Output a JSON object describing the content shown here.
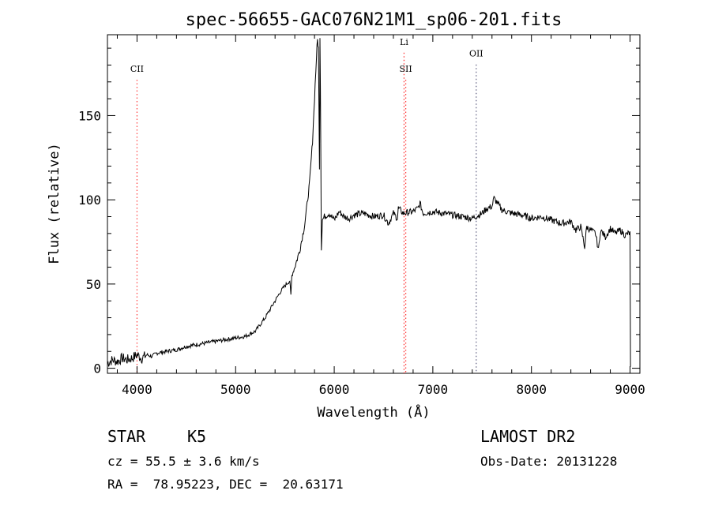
{
  "chart_data": {
    "type": "line",
    "title": "spec-56655-GAC076N21M1_sp06-201.fits",
    "xlabel": "Wavelength (Å)",
    "ylabel": "Flux (relative)",
    "xlim": [
      3700,
      9100
    ],
    "ylim": [
      -3,
      198
    ],
    "x_ticks": [
      4000,
      5000,
      6000,
      7000,
      8000,
      9000
    ],
    "y_ticks": [
      0,
      50,
      100,
      150
    ],
    "grid": false,
    "series": [
      {
        "values_x": [
          3700,
          3750,
          3800,
          3850,
          3900,
          3950,
          4000,
          4050,
          4100,
          4150,
          4200,
          4300,
          4400,
          4500,
          4600,
          4700,
          4800,
          4900,
          5000,
          5100,
          5200,
          5250,
          5300,
          5350,
          5400,
          5450,
          5500,
          5550,
          5560,
          5570,
          5600,
          5650,
          5700,
          5750,
          5780,
          5800,
          5820,
          5830,
          5840,
          5850,
          5855,
          5860,
          5865,
          5870,
          5880,
          5900,
          5950,
          6000,
          6050,
          6100,
          6150,
          6200,
          6300,
          6400,
          6500,
          6550,
          6600,
          6640,
          6650,
          6700,
          6800,
          6850,
          6870,
          6900,
          7000,
          7100,
          7200,
          7300,
          7400,
          7500,
          7550,
          7600,
          7620,
          7700,
          7800,
          7900,
          8000,
          8100,
          8200,
          8300,
          8400,
          8450,
          8500,
          8540,
          8560,
          8600,
          8650,
          8680,
          8700,
          8750,
          8800,
          8850,
          8900,
          8950,
          8980,
          9000,
          9005
        ],
        "values_y": [
          3,
          5,
          4,
          6,
          5,
          6,
          8,
          6,
          8,
          7,
          9,
          10,
          11,
          13,
          14,
          15,
          16,
          17,
          18,
          19,
          22,
          26,
          30,
          35,
          40,
          45,
          49,
          52,
          43,
          55,
          60,
          70,
          85,
          110,
          135,
          160,
          185,
          195,
          190,
          120,
          196,
          165,
          120,
          70,
          88,
          90,
          92,
          88,
          93,
          90,
          89,
          91,
          92,
          90,
          91,
          86,
          92,
          89,
          95,
          92,
          93,
          95,
          98,
          92,
          93,
          92,
          91,
          90,
          89,
          92,
          95,
          96,
          101,
          94,
          92,
          91,
          89,
          90,
          88,
          86,
          87,
          82,
          84,
          72,
          84,
          82,
          80,
          70,
          82,
          78,
          83,
          80,
          82,
          79,
          80,
          80,
          1
        ]
      }
    ],
    "annotations": [
      {
        "label": "CII",
        "x": 4000,
        "color": "#ff4a4a",
        "style": "dotted",
        "label_y": 176
      },
      {
        "label": "Li",
        "x": 6708,
        "color": "#ff3a3a",
        "style": "dotted",
        "label_y": 192
      },
      {
        "label": "SII",
        "x": 6725,
        "color": "#ff3a3a",
        "style": "dotted",
        "label_y": 176
      },
      {
        "label": "OII",
        "x": 7440,
        "color": "#6a6a8a",
        "style": "dotted",
        "label_y": 185
      }
    ]
  },
  "info": {
    "class": "STAR",
    "subclass": "K5",
    "survey": "LAMOST DR2",
    "cz": "cz = 55.5 ± 3.6 km/s",
    "obs_date": "Obs-Date: 20131228",
    "coords": "RA =  78.95223, DEC =  20.63171"
  }
}
